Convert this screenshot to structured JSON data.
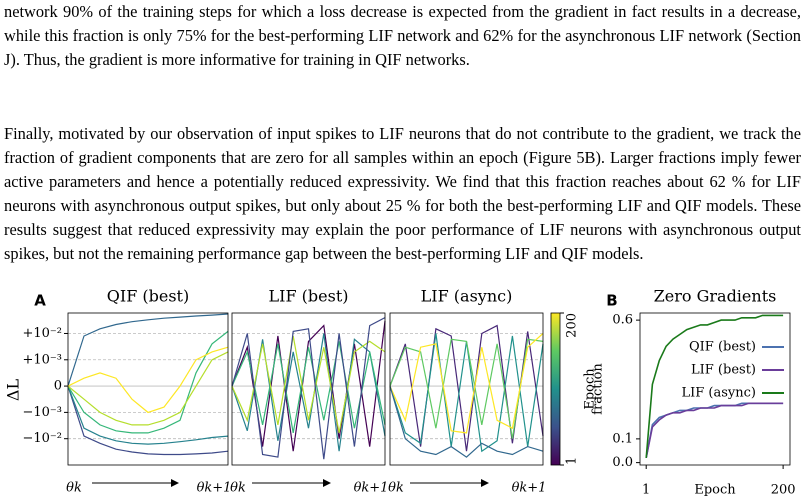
{
  "paragraphs": [
    "network 90% of the training steps for which a loss decrease is expected from the gradient in fact results in a decrease, while this fraction is only 75% for the best-performing LIF network and 62% for the asynchronous LIF network (Section J). Thus, the gradient is more informative for training in QIF networks.",
    "Finally, motivated by our observation of input spikes to LIF neurons that do not contribute to the gradient, we track the fraction of gradient components that are zero for all samples within an epoch (Figure 5B). Larger fractions imply fewer active parameters and hence a potentially reduced expressivity. We find that this fraction reaches about 62 % for LIF neurons with asynchronous output spikes, but only about 25 % for both the best-performing LIF and QIF models. These results suggest that reduced expressivity may explain the poor performance of LIF neurons with asynchronous output spikes, but not the remaining performance gap between the best-performing LIF and QIF models."
  ],
  "figure": {
    "panel_a": {
      "type": "line",
      "label": "A",
      "y_label": "ΔL",
      "yscale": "symlog",
      "linthresh": 0.001,
      "ylim": [
        -0.1,
        0.06
      ],
      "yticks": [
        {
          "value": 0.01,
          "label": "+10⁻²"
        },
        {
          "value": 0.001,
          "label": "+10⁻³"
        },
        0,
        {
          "value": -0.001,
          "label": "−10⁻³"
        },
        {
          "value": -0.01,
          "label": "−10⁻²"
        }
      ],
      "xlim": [
        0,
        1
      ],
      "x": [
        0,
        0.1,
        0.2,
        0.3,
        0.4,
        0.5,
        0.6,
        0.7,
        0.8,
        0.9,
        1
      ],
      "x_start_label": "θk",
      "x_end_label": "θk+1",
      "panels": [
        {
          "title": "QIF (best)",
          "series": [
            {
              "color": "#31688e",
              "values": [
                0,
                0.008,
                0.015,
                0.022,
                0.028,
                0.033,
                0.038,
                0.042,
                0.046,
                0.05,
                0.055
              ]
            },
            {
              "color": "#3e4a89",
              "values": [
                0,
                -0.008,
                -0.015,
                -0.025,
                -0.032,
                -0.038,
                -0.04,
                -0.04,
                -0.038,
                -0.035,
                -0.03
              ]
            },
            {
              "color": "#26828e",
              "values": [
                0,
                -0.004,
                -0.008,
                -0.012,
                -0.015,
                -0.016,
                -0.015,
                -0.013,
                -0.011,
                -0.009,
                -0.008
              ]
            },
            {
              "color": "#35b779",
              "values": [
                0,
                -0.001,
                -0.003,
                -0.005,
                -0.006,
                -0.006,
                -0.004,
                -0.002,
                0.0005,
                0.004,
                0.012
              ]
            },
            {
              "color": "#b5de2b",
              "values": [
                0,
                -0.0005,
                -0.001,
                -0.002,
                -0.003,
                -0.003,
                -0.002,
                -0.001,
                0,
                0.001,
                0.002
              ]
            },
            {
              "color": "#fde725",
              "values": [
                0,
                0.0003,
                0.0005,
                0.0003,
                -0.0005,
                -0.001,
                -0.0008,
                0,
                0.001,
                0.002,
                0.003
              ]
            }
          ]
        },
        {
          "title": "LIF (best)",
          "series": [
            {
              "color": "#440154",
              "values": [
                0,
                0.003,
                -0.02,
                0.008,
                -0.03,
                0.005,
                0.02,
                -0.01,
                0.004,
                -0.02,
                0.03
              ]
            },
            {
              "color": "#26828e",
              "values": [
                0,
                -0.005,
                0.006,
                -0.012,
                0.002,
                -0.004,
                0.01,
                -0.03,
                0.006,
                0.002,
                -0.008
              ]
            },
            {
              "color": "#35b779",
              "values": [
                0,
                0.002,
                -0.003,
                0.004,
                -0.006,
                0.003,
                -0.002,
                0.005,
                -0.004,
                0.002,
                -0.003
              ]
            },
            {
              "color": "#b5de2b",
              "values": [
                0,
                -0.002,
                0.004,
                -0.003,
                0.008,
                -0.002,
                0.003,
                -0.006,
                0.002,
                0.005,
                0.002
              ]
            },
            {
              "color": "#3e4a89",
              "values": [
                0,
                0.01,
                -0.04,
                -0.05,
                0.012,
                0.015,
                -0.06,
                0.01,
                -0.02,
                0.02,
                0.04
              ]
            }
          ]
        },
        {
          "title": "LIF (async)",
          "series": [
            {
              "color": "#482878",
              "values": [
                0,
                0.004,
                -0.02,
                0.015,
                0.008,
                -0.03,
                0.01,
                0.02,
                -0.015,
                0.012,
                -0.008
              ]
            },
            {
              "color": "#21918c",
              "values": [
                0,
                -0.006,
                -0.015,
                0.01,
                -0.02,
                0.005,
                -0.03,
                -0.012,
                0.008,
                -0.02,
                0.004
              ]
            },
            {
              "color": "#5ec962",
              "values": [
                0,
                0.003,
                0.002,
                -0.004,
                0.006,
                0.005,
                -0.003,
                0.004,
                -0.01,
                0.006,
                0.005
              ]
            },
            {
              "color": "#fde725",
              "values": [
                0,
                -0.002,
                0.003,
                0.004,
                -0.005,
                -0.006,
                0.003,
                -0.002,
                -0.004,
                0.003,
                0.01
              ]
            },
            {
              "color": "#31688e",
              "values": [
                0,
                -0.01,
                -0.03,
                -0.04,
                -0.02,
                -0.05,
                -0.015,
                -0.03,
                -0.04,
                -0.02,
                -0.03
              ]
            }
          ]
        }
      ],
      "colorbar": {
        "label": "Epoch",
        "lim": [
          1,
          200
        ],
        "ticks": [
          1,
          200
        ]
      }
    },
    "panel_b": {
      "type": "line",
      "label": "B",
      "title": "Zero Gradients",
      "x_label": "Epoch",
      "y_label": "fraction",
      "xlim": [
        -8,
        210
      ],
      "xticks": [
        1,
        200
      ],
      "ylim": [
        -0.01,
        0.63
      ],
      "yticks": [
        {
          "value": 0,
          "label": "0.0"
        },
        0.1,
        0.6
      ],
      "legend": "center right",
      "x": [
        1,
        10,
        20,
        30,
        40,
        50,
        60,
        70,
        80,
        90,
        100,
        110,
        120,
        130,
        140,
        150,
        160,
        170,
        180,
        190,
        200
      ],
      "series": [
        {
          "name": "QIF (best)",
          "color": "#4c72b0",
          "values": [
            0.02,
            0.16,
            0.19,
            0.2,
            0.21,
            0.22,
            0.22,
            0.23,
            0.23,
            0.23,
            0.24,
            0.24,
            0.24,
            0.24,
            0.25,
            0.25,
            0.25,
            0.25,
            0.25,
            0.25,
            0.25
          ]
        },
        {
          "name": "LIF (best)",
          "color": "#6a3d9a",
          "values": [
            0.02,
            0.15,
            0.18,
            0.2,
            0.21,
            0.21,
            0.22,
            0.22,
            0.23,
            0.23,
            0.23,
            0.24,
            0.24,
            0.24,
            0.24,
            0.25,
            0.25,
            0.25,
            0.25,
            0.25,
            0.25
          ]
        },
        {
          "name": "LIF (async)",
          "color": "#1a7a1a",
          "values": [
            0.02,
            0.33,
            0.43,
            0.49,
            0.52,
            0.54,
            0.56,
            0.57,
            0.58,
            0.58,
            0.59,
            0.6,
            0.6,
            0.6,
            0.61,
            0.61,
            0.61,
            0.62,
            0.62,
            0.62,
            0.62
          ]
        }
      ]
    }
  }
}
